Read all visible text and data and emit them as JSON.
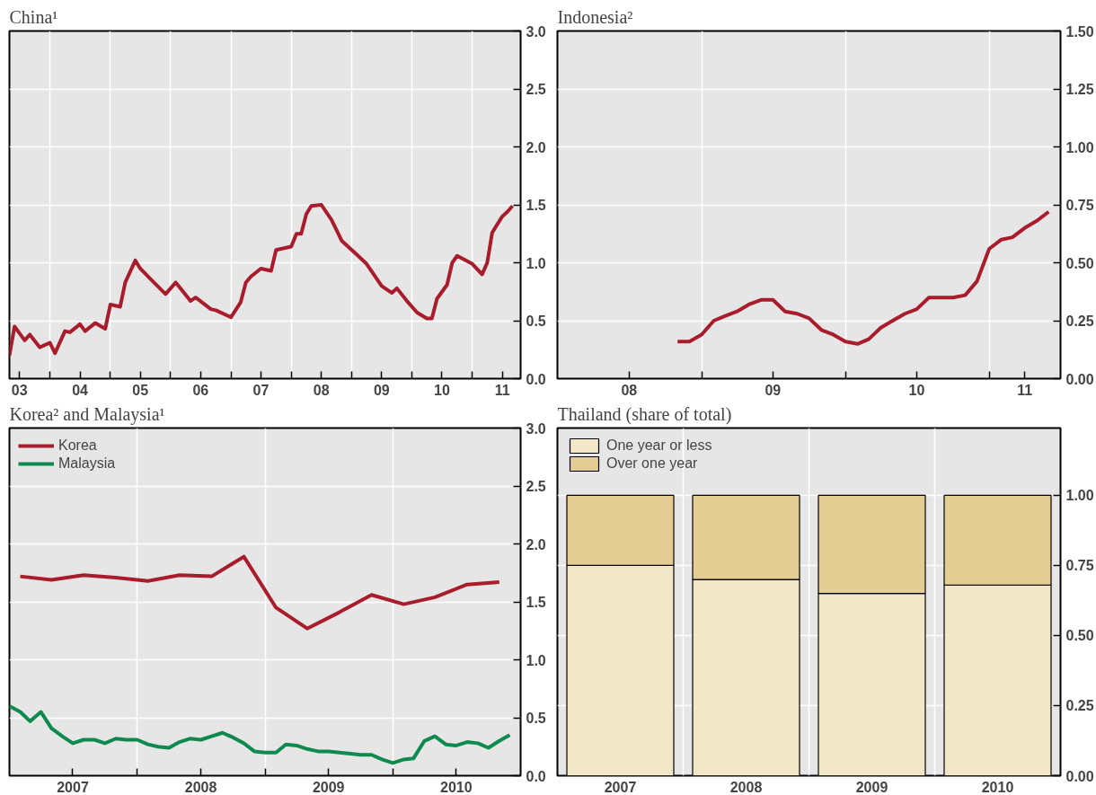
{
  "chart_data": [
    {
      "type": "line",
      "title": "China¹",
      "xlim": [
        "2003-05-01",
        "2011-10-20"
      ],
      "xticks": [
        {
          "value": "2003-07-01",
          "label": "03"
        },
        {
          "value": "2004",
          "label": null
        },
        {
          "value": "2004-07-01",
          "label": "04"
        },
        {
          "value": "2005",
          "label": null
        },
        {
          "value": "2005-07-01",
          "label": "05"
        },
        {
          "value": "2006",
          "label": null
        },
        {
          "value": "2006-07-01",
          "label": "06"
        },
        {
          "value": "2007",
          "label": null
        },
        {
          "value": "2007-07-01",
          "label": "07"
        },
        {
          "value": "2008",
          "label": null
        },
        {
          "value": "2008-07-01",
          "label": "08"
        },
        {
          "value": "2009",
          "label": null
        },
        {
          "value": "2009-07-01",
          "label": "09"
        },
        {
          "value": "2010",
          "label": null
        },
        {
          "value": "2010-07-01",
          "label": "10"
        },
        {
          "value": "2011",
          "label": null
        },
        {
          "value": "2011-07-01",
          "label": "11"
        }
      ],
      "ylim": [
        0,
        3
      ],
      "yticks": [
        {
          "value": 0,
          "label": "0.0"
        },
        0.5,
        {
          "value": 1,
          "label": "1.0"
        },
        1.5,
        {
          "value": 2,
          "label": "2.0"
        },
        2.5,
        {
          "value": 3,
          "label": "3.0"
        }
      ],
      "grid": true,
      "series": [
        {
          "color": "#a81c2c",
          "x": [
            "2003-05",
            "2003-06",
            "2003-08",
            "2003-09",
            "2003-11",
            "2004-01",
            "2004-02",
            "2004-04",
            "2004-05",
            "2004-07",
            "2004-08",
            "2004-10",
            "2004-12",
            "2005-01",
            "2005-03",
            "2005-04",
            "2005-06",
            "2005-07",
            "2005-09",
            "2005-12",
            "2006-02",
            "2006-05",
            "2006-06",
            "2006-09",
            "2006-10",
            "2007-01",
            "2007-03",
            "2007-04",
            "2007-05",
            "2007-07",
            "2007-09",
            "2007-10",
            "2008-01",
            "2008-02",
            "2008-03",
            "2008-04",
            "2008-05",
            "2008-07",
            "2008-09",
            "2008-11",
            "2009-02",
            "2009-04",
            "2009-07",
            "2009-09",
            "2009-10",
            "2009-12",
            "2010-02",
            "2010-04",
            "2010-05",
            "2010-06",
            "2010-08",
            "2010-09",
            "2010-10",
            "2011-01",
            "2011-03",
            "2011-04",
            "2011-05",
            "2011-07",
            "2011-08",
            "2011-09"
          ],
          "values": [
            0.2,
            0.45,
            0.33,
            0.38,
            0.27,
            0.31,
            0.22,
            0.41,
            0.4,
            0.47,
            0.41,
            0.48,
            0.43,
            0.64,
            0.62,
            0.83,
            1.02,
            0.95,
            0.86,
            0.73,
            0.83,
            0.67,
            0.7,
            0.6,
            0.59,
            0.53,
            0.66,
            0.83,
            0.88,
            0.95,
            0.93,
            1.11,
            1.14,
            1.25,
            1.25,
            1.42,
            1.49,
            1.5,
            1.37,
            1.19,
            1.07,
            0.99,
            0.8,
            0.74,
            0.78,
            0.67,
            0.57,
            0.52,
            0.52,
            0.69,
            0.81,
            1.0,
            1.06,
            0.99,
            0.9,
            1.0,
            1.26,
            1.4,
            1.44,
            1.49
          ]
        }
      ]
    },
    {
      "type": "line",
      "title": "Indonesia²",
      "xlim": [
        "2008-01-01",
        "2011-07-01"
      ],
      "xticks": [
        {
          "value": "2008-07-01",
          "label": "08"
        },
        {
          "value": "2009",
          "label": null
        },
        {
          "value": "2009-07-01",
          "label": "09"
        },
        {
          "value": "2010",
          "label": null
        },
        {
          "value": "2010-07-01",
          "label": "10"
        },
        {
          "value": "2011",
          "label": null
        },
        {
          "value": "2011-04-01",
          "label": "11"
        }
      ],
      "ylim": [
        0,
        1.5
      ],
      "yticks": [
        {
          "value": 0,
          "label": "0.00"
        },
        {
          "value": 0.25,
          "label": "0.25"
        },
        {
          "value": 0.5,
          "label": "0.50"
        },
        {
          "value": 0.75,
          "label": "0.75"
        },
        {
          "value": 1,
          "label": "1.00"
        },
        {
          "value": 1.25,
          "label": "1.25"
        },
        {
          "value": 1.5,
          "label": "1.50"
        }
      ],
      "grid": true,
      "series": [
        {
          "color": "#a81c2c",
          "x": [
            "2008-11",
            "2008-12",
            "2009-01",
            "2009-02",
            "2009-03",
            "2009-04",
            "2009-05",
            "2009-06",
            "2009-07",
            "2009-08",
            "2009-09",
            "2009-10",
            "2009-11",
            "2009-12",
            "2010-01",
            "2010-02",
            "2010-03",
            "2010-04",
            "2010-05",
            "2010-06",
            "2010-07",
            "2010-08",
            "2010-09",
            "2010-10",
            "2010-11",
            "2010-12",
            "2011-01",
            "2011-02",
            "2011-03",
            "2011-04",
            "2011-05",
            "2011-06"
          ],
          "values": [
            0.16,
            0.16,
            0.19,
            0.25,
            0.27,
            0.29,
            0.32,
            0.34,
            0.34,
            0.29,
            0.28,
            0.26,
            0.21,
            0.19,
            0.16,
            0.15,
            0.17,
            0.22,
            0.25,
            0.28,
            0.3,
            0.35,
            0.35,
            0.35,
            0.36,
            0.42,
            0.56,
            0.6,
            0.61,
            0.65,
            0.68,
            0.72
          ]
        }
      ]
    },
    {
      "type": "line",
      "title": "Korea² and Malaysia¹",
      "xlim": [
        "2007-01-01",
        "2011-01-01"
      ],
      "xticks": [
        {
          "value": "2007-07-01",
          "label": "2007"
        },
        {
          "value": "2008",
          "label": null
        },
        {
          "value": "2008-07-01",
          "label": "2008"
        },
        {
          "value": "2009",
          "label": null
        },
        {
          "value": "2009-07-01",
          "label": "2009"
        },
        {
          "value": "2010",
          "label": null
        },
        {
          "value": "2010-07-01",
          "label": "2010"
        }
      ],
      "ylim": [
        0,
        3
      ],
      "yticks": [
        {
          "value": 0,
          "label": "0.0"
        },
        0.5,
        {
          "value": 1,
          "label": "1.0"
        },
        1.5,
        {
          "value": 2,
          "label": "2.0"
        },
        2.5,
        {
          "value": 3,
          "label": "3.0"
        }
      ],
      "grid": true,
      "legend": "top left",
      "series": [
        {
          "name": "Korea",
          "color": "#a81c2c",
          "x": [
            "2007-02",
            "2007-05",
            "2007-08",
            "2007-11",
            "2008-02",
            "2008-05",
            "2008-08",
            "2008-11",
            "2009-02",
            "2009-05",
            "2009-08",
            "2009-11",
            "2010-02",
            "2010-05",
            "2010-08",
            "2010-11"
          ],
          "values": [
            1.72,
            1.69,
            1.73,
            1.71,
            1.68,
            1.73,
            1.72,
            1.89,
            1.45,
            1.27,
            1.41,
            1.56,
            1.48,
            1.54,
            1.65,
            1.67
          ]
        },
        {
          "name": "Malaysia",
          "color": "#0f8a4f",
          "x": [
            "2007-01",
            "2007-02",
            "2007-03",
            "2007-04",
            "2007-05",
            "2007-06",
            "2007-07",
            "2007-08",
            "2007-09",
            "2007-10",
            "2007-11",
            "2007-12",
            "2008-01",
            "2008-02",
            "2008-03",
            "2008-04",
            "2008-05",
            "2008-06",
            "2008-07",
            "2008-08",
            "2008-09",
            "2008-10",
            "2008-11",
            "2008-12",
            "2009-01",
            "2009-02",
            "2009-03",
            "2009-04",
            "2009-05",
            "2009-06",
            "2009-07",
            "2009-08",
            "2009-09",
            "2009-10",
            "2009-11",
            "2009-12",
            "2010-01",
            "2010-02",
            "2010-03",
            "2010-04",
            "2010-05",
            "2010-06",
            "2010-07",
            "2010-08",
            "2010-09",
            "2010-10",
            "2010-11",
            "2010-12"
          ],
          "values": [
            0.6,
            0.55,
            0.47,
            0.55,
            0.41,
            0.34,
            0.28,
            0.31,
            0.31,
            0.28,
            0.32,
            0.31,
            0.31,
            0.27,
            0.25,
            0.24,
            0.29,
            0.32,
            0.31,
            0.34,
            0.37,
            0.33,
            0.28,
            0.21,
            0.2,
            0.2,
            0.27,
            0.26,
            0.23,
            0.21,
            0.21,
            0.2,
            0.19,
            0.18,
            0.18,
            0.14,
            0.11,
            0.14,
            0.15,
            0.3,
            0.34,
            0.27,
            0.26,
            0.29,
            0.28,
            0.24,
            0.3,
            0.35
          ]
        }
      ]
    },
    {
      "type": "bar",
      "title": "Thailand (share of total)",
      "stacked": true,
      "categories": [
        "2007",
        "2008",
        "2009",
        "2010"
      ],
      "ylim": [
        0,
        1.24
      ],
      "yticks": [
        {
          "value": 0,
          "label": "0.00"
        },
        {
          "value": 0.25,
          "label": "0.25"
        },
        {
          "value": 0.5,
          "label": "0.50"
        },
        {
          "value": 0.75,
          "label": "0.75"
        },
        {
          "value": 1,
          "label": "1.00"
        }
      ],
      "grid": true,
      "legend": "top left",
      "series": [
        {
          "name": "One year or less",
          "color": "#f2e8c8",
          "values": [
            0.75,
            0.7,
            0.65,
            0.68
          ]
        },
        {
          "name": "Over one year",
          "color": "#e3cd92",
          "values": [
            0.25,
            0.3,
            0.35,
            0.32
          ]
        }
      ]
    }
  ]
}
